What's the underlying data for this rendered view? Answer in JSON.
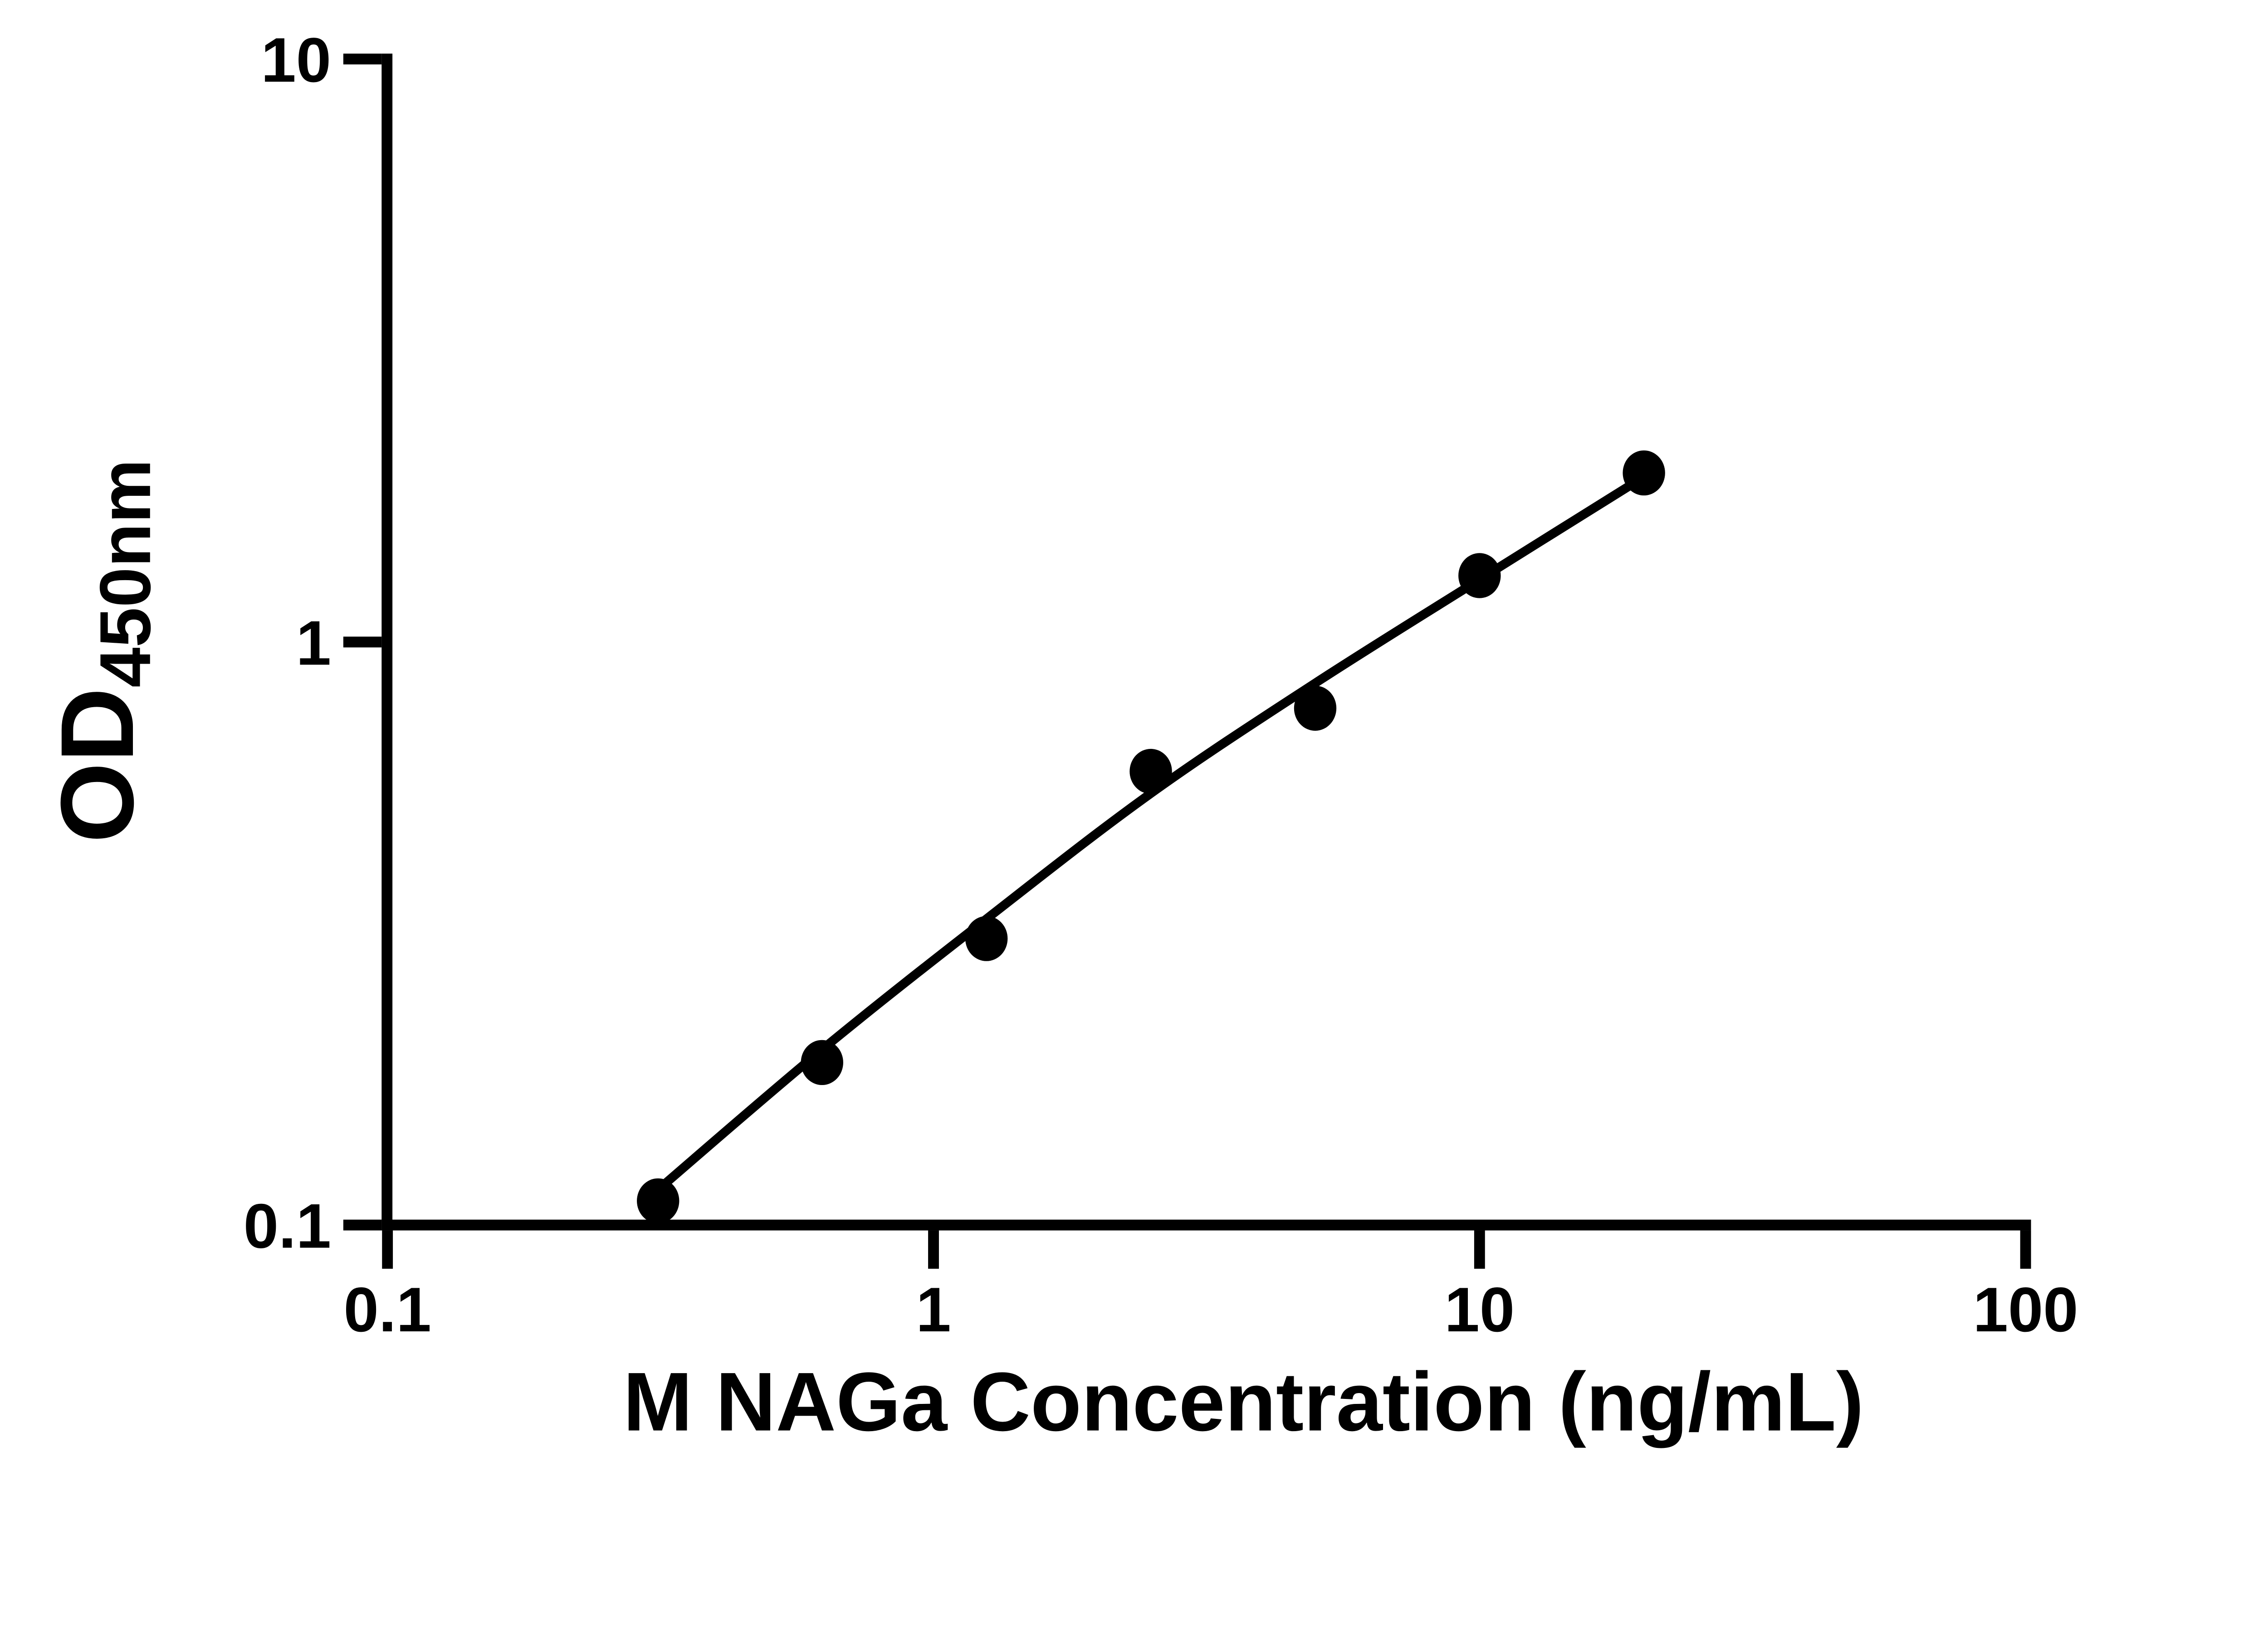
{
  "figure": {
    "background": "#ffffff",
    "ink_color": "#000000"
  },
  "chart_data": {
    "type": "scatter",
    "title": "",
    "xlabel": "M NAGa Concentration (ng/mL)",
    "ylabel": "OD",
    "ylabel_subscript": "450nm",
    "x_scale": "log",
    "y_scale": "log",
    "xlim": [
      0.1,
      100
    ],
    "ylim": [
      0.1,
      10
    ],
    "x_ticks": [
      0.1,
      1,
      10,
      100
    ],
    "x_tick_labels": [
      "0.1",
      "1",
      "10",
      "100"
    ],
    "y_ticks": [
      10,
      1,
      0.1
    ],
    "y_tick_labels": [
      "10",
      "1",
      "0.1"
    ],
    "grid": false,
    "legend": null,
    "marker": "filled-circle",
    "series": [
      {
        "name": "standard-curve-points",
        "x": [
          0.313,
          0.625,
          1.25,
          2.5,
          5,
          10,
          20
        ],
        "y": [
          0.11,
          0.19,
          0.31,
          0.6,
          0.77,
          1.3,
          1.95
        ]
      }
    ],
    "fit_curve": {
      "x": [
        0.313,
        0.625,
        1.25,
        2.5,
        5,
        10,
        20
      ],
      "y": [
        0.115,
        0.2,
        0.335,
        0.55,
        0.85,
        1.28,
        1.92
      ]
    }
  }
}
